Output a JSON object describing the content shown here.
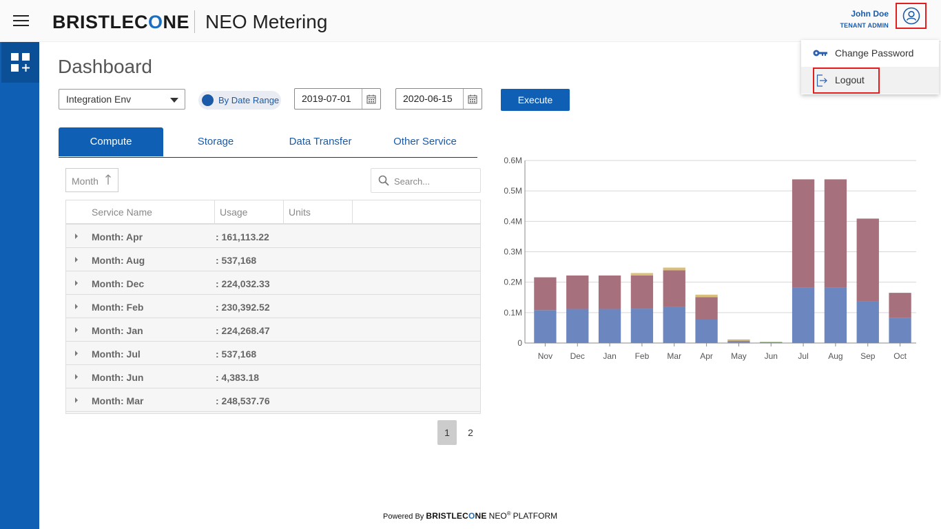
{
  "header": {
    "logo_text_a": "BRISTLEC",
    "logo_text_o": "O",
    "logo_text_b": "NE",
    "app_title": "NEO Metering",
    "user_name": "John Doe",
    "user_role": "TENANT ADMIN"
  },
  "user_menu": {
    "change_password": "Change Password",
    "logout": "Logout"
  },
  "page": {
    "title": "Dashboard"
  },
  "filters": {
    "environment": "Integration Env",
    "toggle_label": "By Date Range",
    "start_date": "2019-07-01",
    "end_date": "2020-06-15",
    "execute_label": "Execute"
  },
  "tabs": [
    {
      "label": "Compute",
      "active": true
    },
    {
      "label": "Storage",
      "active": false
    },
    {
      "label": "Data Transfer",
      "active": false
    },
    {
      "label": "Other Service",
      "active": false
    }
  ],
  "grid": {
    "group_chip": "Month",
    "search_placeholder": "Search...",
    "columns": [
      "Service Name",
      "Usage",
      "Units"
    ],
    "rows": [
      {
        "name": "Month: Apr",
        "value": ": 161,113.22"
      },
      {
        "name": "Month: Aug",
        "value": ": 537,168"
      },
      {
        "name": "Month: Dec",
        "value": ": 224,032.33"
      },
      {
        "name": "Month: Feb",
        "value": ": 230,392.52"
      },
      {
        "name": "Month: Jan",
        "value": ": 224,268.47"
      },
      {
        "name": "Month: Jul",
        "value": ": 537,168"
      },
      {
        "name": "Month: Jun",
        "value": ": 4,383.18"
      },
      {
        "name": "Month: Mar",
        "value": ": 248,537.76"
      }
    ],
    "pages": [
      "1",
      "2"
    ],
    "current_page": "1"
  },
  "chart_data": {
    "type": "bar",
    "stacked": true,
    "categories": [
      "Nov",
      "Dec",
      "Jan",
      "Feb",
      "Mar",
      "Apr",
      "May",
      "Jun",
      "Jul",
      "Aug",
      "Sep",
      "Oct"
    ],
    "ytick_labels": [
      "0",
      "0.1M",
      "0.2M",
      "0.3M",
      "0.4M",
      "0.5M",
      "0.6M"
    ],
    "ylim": [
      0,
      600000
    ],
    "grid": true,
    "series": [
      {
        "color": "#6c86bf",
        "values": [
          108000,
          112000,
          112000,
          113000,
          119000,
          77000,
          4000,
          1500,
          182000,
          182000,
          138000,
          82000
        ]
      },
      {
        "color": "#a7707d",
        "values": [
          108000,
          110000,
          110000,
          109000,
          120000,
          74000,
          3000,
          1500,
          356000,
          356000,
          271000,
          83000
        ]
      },
      {
        "color": "#d9c07a",
        "values": [
          0,
          0,
          0,
          8000,
          9000,
          8000,
          3000,
          0,
          0,
          0,
          0,
          0
        ]
      },
      {
        "color": "#7fa05c",
        "values": [
          0,
          0,
          0,
          0,
          0,
          0,
          1000,
          500,
          0,
          0,
          0,
          0
        ]
      }
    ]
  },
  "footer": {
    "powered_by": "Powered By",
    "brand_a": "BRISTLEC",
    "brand_o": "O",
    "brand_b": "NE",
    "neo": "NEO",
    "reg": "®",
    "platform": "PLATFORM"
  }
}
